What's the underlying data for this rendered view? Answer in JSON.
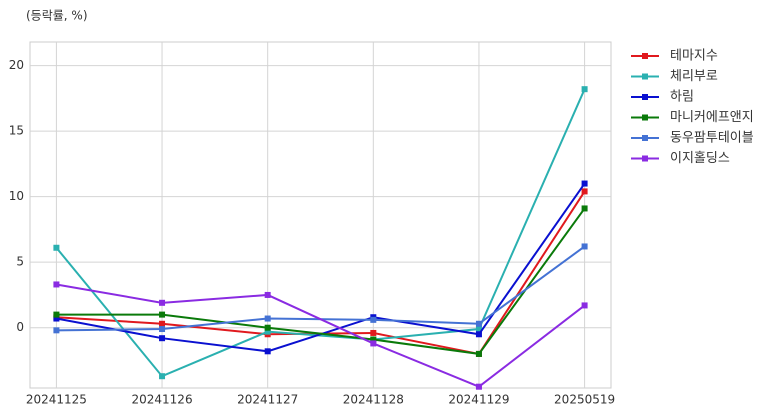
{
  "chart_data": {
    "type": "line",
    "subtitle": "(등락률, %)",
    "categories": [
      "20241125",
      "20241126",
      "20241127",
      "20241128",
      "20241129",
      "20250519"
    ],
    "series": [
      {
        "name": "테마지수",
        "color": "#e0191e",
        "values": [
          0.8,
          0.3,
          -0.5,
          -0.4,
          -2.0,
          10.4
        ]
      },
      {
        "name": "체리부로",
        "color": "#2ab0b0",
        "values": [
          6.1,
          -3.7,
          -0.3,
          -0.9,
          -0.1,
          18.2
        ]
      },
      {
        "name": "하림",
        "color": "#0a10d0",
        "values": [
          0.7,
          -0.8,
          -1.8,
          0.8,
          -0.5,
          11.0
        ]
      },
      {
        "name": "마니커에프앤지",
        "color": "#0a7a0a",
        "values": [
          1.0,
          1.0,
          0.0,
          -0.9,
          -2.0,
          9.1
        ]
      },
      {
        "name": "동우팜투테이블",
        "color": "#4472d4",
        "values": [
          -0.2,
          -0.1,
          0.7,
          0.6,
          0.3,
          6.2
        ]
      },
      {
        "name": "이지홀딩스",
        "color": "#8a2be2",
        "values": [
          3.3,
          1.9,
          2.5,
          -1.2,
          -4.5,
          1.7
        ]
      }
    ],
    "ylim": [
      -4.6,
      21.8
    ],
    "yticks": [
      0,
      5,
      10,
      15,
      20
    ],
    "grid": true
  }
}
